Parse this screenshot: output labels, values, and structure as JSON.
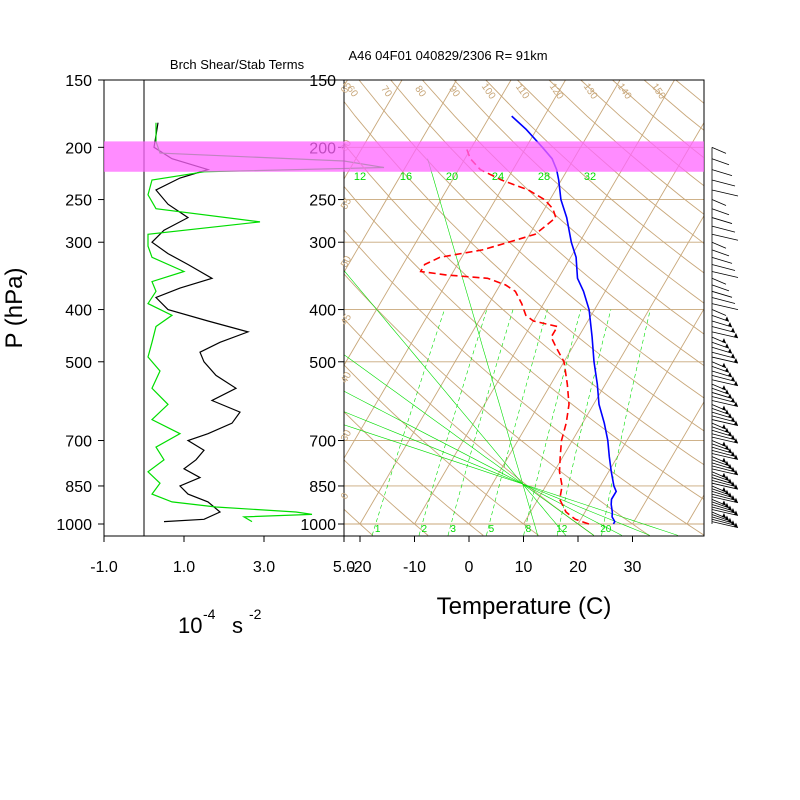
{
  "chart_data": [
    {
      "type": "line",
      "title": "Brch Shear/Stab Terms",
      "ylabel": "P (hPa)",
      "xlabel_base": "10",
      "xlabel_exp": "-4",
      "xlabel_unit": "s",
      "xlabel_unit_exp": "-2",
      "x_ticks": [
        -1.0,
        1.0,
        3.0,
        5.0
      ],
      "x_tick_labels": [
        "-1.0",
        "1.0",
        "3.0",
        "5.0"
      ],
      "xlim": [
        -1.0,
        5.0
      ],
      "y_scale": "log",
      "ylim": [
        1050,
        150
      ],
      "y_ticks": [
        150,
        200,
        250,
        300,
        400,
        500,
        700,
        850,
        1000
      ],
      "y_tick_labels": [
        "150",
        "200",
        "250",
        "300",
        "400",
        "500",
        "700",
        "850",
        "1000"
      ],
      "zero_line": 0,
      "highlight_band_hpa": [
        195,
        222
      ],
      "highlight_color": "#ff66ff",
      "series": [
        {
          "color": "#000000",
          "p": [
            180,
            190,
            200,
            210,
            220,
            228,
            240,
            255,
            270,
            285,
            300,
            315,
            330,
            350,
            365,
            380,
            400,
            420,
            440,
            460,
            480,
            500,
            530,
            560,
            590,
            620,
            650,
            680,
            700,
            730,
            760,
            790,
            820,
            850,
            880,
            910,
            950,
            980,
            990
          ],
          "x": [
            0.35,
            0.3,
            0.25,
            0.7,
            1.6,
            0.9,
            0.3,
            0.6,
            1.1,
            0.5,
            0.2,
            0.6,
            1.1,
            1.7,
            0.9,
            0.3,
            0.6,
            1.6,
            2.6,
            1.9,
            1.4,
            1.5,
            1.8,
            2.3,
            1.7,
            2.4,
            2.2,
            1.6,
            1.1,
            1.5,
            1.3,
            1.0,
            1.4,
            0.9,
            1.1,
            1.6,
            1.9,
            1.5,
            0.5
          ]
        },
        {
          "color": "#00dd00",
          "p": [
            180,
            195,
            205,
            212,
            218,
            222,
            230,
            245,
            260,
            275,
            290,
            305,
            320,
            340,
            355,
            370,
            390,
            410,
            430,
            460,
            490,
            520,
            560,
            600,
            640,
            680,
            720,
            760,
            800,
            840,
            880,
            910,
            930,
            950,
            960,
            970,
            990
          ],
          "x": [
            0.3,
            0.3,
            0.4,
            5.0,
            6.0,
            1.5,
            0.2,
            0.1,
            0.3,
            2.9,
            0.1,
            0.1,
            0.2,
            1.0,
            0.2,
            0.3,
            0.1,
            0.7,
            0.3,
            0.2,
            0.1,
            0.4,
            0.2,
            0.6,
            0.2,
            0.9,
            0.3,
            0.5,
            0.1,
            0.4,
            0.2,
            0.7,
            1.8,
            3.8,
            4.2,
            2.5,
            2.7
          ]
        }
      ]
    },
    {
      "type": "line",
      "title": "A46 04F01 040829/2306 R=  91km",
      "xlabel": "Temperature (C)",
      "x_ticks": [
        -20,
        -10,
        0,
        10,
        20,
        30
      ],
      "x_tick_labels": [
        "-20",
        "-10",
        "0",
        "10",
        "20",
        "30"
      ],
      "y_scale": "log",
      "y_ticks": [
        150,
        200,
        250,
        300,
        400,
        500,
        700,
        850,
        1000
      ],
      "y_tick_labels": [
        "150",
        "200",
        "250",
        "300",
        "400",
        "500",
        "700",
        "850",
        "1000"
      ],
      "skew_t": true,
      "mixing_ratio_labels": [
        "1",
        "2",
        "3",
        "5",
        "8",
        "12",
        "20"
      ],
      "mixing_ratio_values": [
        1,
        2,
        3,
        5,
        8,
        12,
        20
      ],
      "moist_adiabat_labels": [
        "12",
        "16",
        "20",
        "24",
        "28",
        "32"
      ],
      "moist_adiabat_values": [
        12,
        16,
        20,
        24,
        28,
        32
      ],
      "isotherm_top_labels": [
        "60",
        "70",
        "80",
        "90",
        "100",
        "110",
        "120",
        "130",
        "140",
        "150"
      ],
      "isotherm_top_values": [
        60,
        70,
        80,
        90,
        100,
        110,
        120,
        130,
        140,
        150
      ],
      "dry_adiabat_left_labels": [
        "0",
        "30",
        "40",
        "45",
        "50",
        "55",
        "60",
        "65"
      ],
      "grid_color_brown": "#c8a77a",
      "grid_color_green": "#00dd00",
      "series": [
        {
          "style": "solid",
          "color": "#0000ff",
          "p": [
            1000,
            990,
            970,
            950,
            920,
            900,
            870,
            850,
            800,
            750,
            700,
            650,
            600,
            550,
            500,
            450,
            400,
            370,
            350,
            320,
            300,
            270,
            250,
            230,
            220,
            210,
            200,
            185,
            175
          ],
          "t": [
            26.5,
            26.5,
            25.5,
            25,
            24,
            23.5,
            23.5,
            22.5,
            20.5,
            18.5,
            16.5,
            14,
            11,
            8.5,
            5.5,
            2.5,
            -1,
            -4,
            -6.5,
            -9,
            -11.5,
            -15,
            -18,
            -20.5,
            -22,
            -24,
            -27,
            -32,
            -36
          ]
        },
        {
          "style": "dashed",
          "color": "#ff0000",
          "p": [
            1000,
            980,
            950,
            900,
            850,
            800,
            750,
            700,
            650,
            600,
            550,
            500,
            470,
            450,
            430,
            420,
            410,
            390,
            370,
            360,
            350,
            345,
            340,
            330,
            320,
            310,
            300,
            290,
            280,
            270,
            260,
            250,
            240,
            230,
            220,
            210,
            200
          ],
          "t": [
            22,
            19,
            16.5,
            14,
            13,
            11,
            9.5,
            8,
            7,
            5.5,
            3,
            0,
            -3,
            -5,
            -5,
            -10,
            -12,
            -14,
            -16.5,
            -19,
            -23,
            -31,
            -36,
            -36,
            -34,
            -27,
            -23,
            -19,
            -18,
            -17,
            -18.5,
            -21,
            -25,
            -31,
            -36,
            -39,
            -41
          ]
        }
      ]
    }
  ],
  "wind_barbs": {
    "color": "#000000",
    "count": 80
  }
}
